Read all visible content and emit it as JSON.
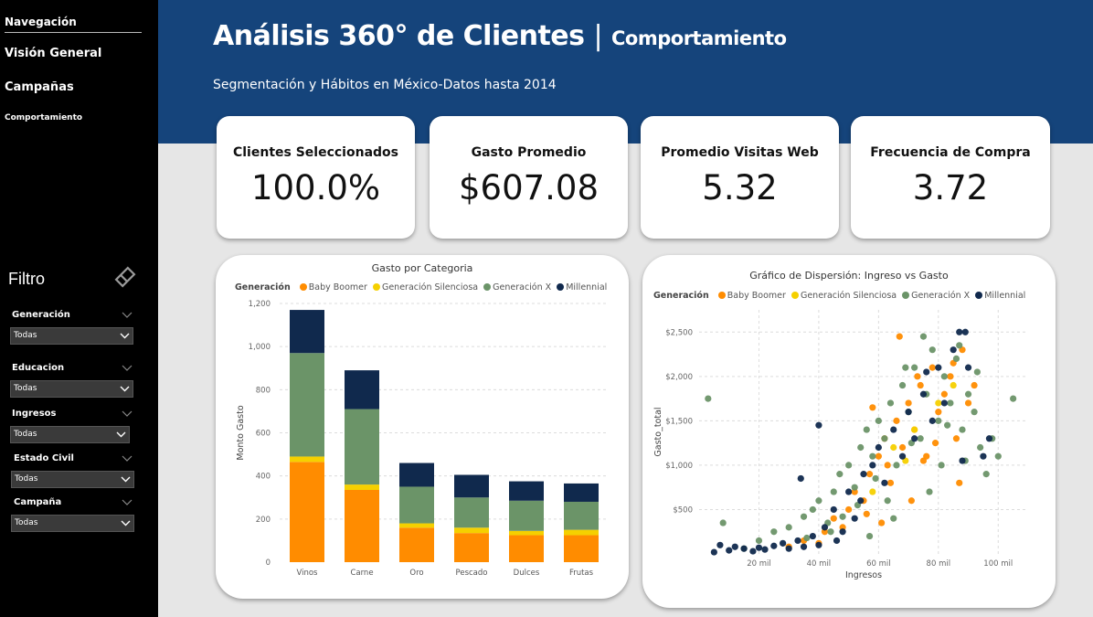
{
  "sidebar": {
    "nav_title": "Navegación",
    "items": [
      "Visión General",
      "Campañas",
      "Comportamiento"
    ],
    "filter_title": "Filtro",
    "filters": [
      {
        "label": "Generación",
        "value": "Todas"
      },
      {
        "label": "Educacion",
        "value": "Todas"
      },
      {
        "label": "Ingresos",
        "value": "Todas"
      },
      {
        "label": "Estado Civil",
        "value": "Todas"
      },
      {
        "label": "Campaña",
        "value": "Todas"
      }
    ]
  },
  "header": {
    "title": "Análisis 360° de Clientes",
    "separator": "|",
    "title_sub": "Comportamiento",
    "subtitle": "Segmentación y Hábitos en México-Datos hasta 2014"
  },
  "kpis": [
    {
      "label": "Clientes Seleccionados",
      "value": "100.0%"
    },
    {
      "label": "Gasto Promedio",
      "value": "$607.08"
    },
    {
      "label": "Promedio Visitas Web",
      "value": "5.32"
    },
    {
      "label": "Frecuencia de Compra",
      "value": "3.72"
    }
  ],
  "legend": {
    "title": "Generación",
    "items": [
      {
        "name": "Baby Boomer",
        "color": "#ff8c00"
      },
      {
        "name": "Generación Silenciosa",
        "color": "#f5d000"
      },
      {
        "name": "Generación X",
        "color": "#6b9468"
      },
      {
        "name": "Millennial",
        "color": "#10294d"
      }
    ]
  },
  "chart_data": [
    {
      "type": "bar",
      "stacked": true,
      "title": "Gasto por Categoria",
      "xlabel": "",
      "ylabel": "Monto Gasto",
      "ylim": [
        0,
        1200
      ],
      "yticks": [
        "0",
        "200",
        "400",
        "600",
        "800",
        "1,000",
        "1,200"
      ],
      "categories": [
        "Vinos",
        "Carne",
        "Oro",
        "Pescado",
        "Dulces",
        "Frutas"
      ],
      "series": [
        {
          "name": "Baby Boomer",
          "values": [
            465,
            335,
            160,
            135,
            125,
            125
          ]
        },
        {
          "name": "Generación Silenciosa",
          "values": [
            25,
            25,
            20,
            25,
            20,
            25
          ]
        },
        {
          "name": "Generación X",
          "values": [
            480,
            350,
            170,
            140,
            140,
            130
          ]
        },
        {
          "name": "Millennial",
          "values": [
            200,
            180,
            110,
            105,
            90,
            85
          ]
        }
      ],
      "grid": true,
      "legend": "top-left"
    },
    {
      "type": "scatter",
      "title": "Gráfico de Dispersión: Ingreso vs Gasto",
      "xlabel": "Ingresos",
      "ylabel": "Gasto_total",
      "xlim": [
        0,
        110000
      ],
      "ylim": [
        0,
        2750
      ],
      "xticks": [
        {
          "v": 20000,
          "label": "20 mil"
        },
        {
          "v": 40000,
          "label": "40 mil"
        },
        {
          "v": 60000,
          "label": "60 mil"
        },
        {
          "v": 80000,
          "label": "80 mil"
        },
        {
          "v": 100000,
          "label": "100 mil"
        }
      ],
      "yticks": [
        {
          "v": 500,
          "label": "$500"
        },
        {
          "v": 1000,
          "label": "$1,000"
        },
        {
          "v": 1500,
          "label": "$1,500"
        },
        {
          "v": 2000,
          "label": "$2,000"
        },
        {
          "v": 2500,
          "label": "$2,500"
        }
      ],
      "series": [
        {
          "name": "Baby Boomer",
          "points": [
            [
              30000,
              80
            ],
            [
              35000,
              150
            ],
            [
              42000,
              250
            ],
            [
              45000,
              400
            ],
            [
              50000,
              500
            ],
            [
              52000,
              700
            ],
            [
              55000,
              600
            ],
            [
              57000,
              900
            ],
            [
              60000,
              1100
            ],
            [
              62000,
              1300
            ],
            [
              64000,
              800
            ],
            [
              66000,
              1500
            ],
            [
              68000,
              1200
            ],
            [
              70000,
              1700
            ],
            [
              72000,
              1400
            ],
            [
              74000,
              1900
            ],
            [
              76000,
              1100
            ],
            [
              78000,
              2100
            ],
            [
              80000,
              1600
            ],
            [
              82000,
              1800
            ],
            [
              84000,
              2000
            ],
            [
              86000,
              1300
            ],
            [
              88000,
              2300
            ],
            [
              90000,
              1700
            ],
            [
              92000,
              1900
            ],
            [
              48000,
              300
            ],
            [
              56000,
              450
            ],
            [
              63000,
              1000
            ],
            [
              67000,
              2450
            ],
            [
              75000,
              1050
            ],
            [
              85000,
              2150
            ],
            [
              58000,
              1650
            ],
            [
              71000,
              600
            ],
            [
              79000,
              1250
            ],
            [
              87000,
              800
            ],
            [
              40000,
              120
            ],
            [
              61000,
              350
            ],
            [
              73000,
              2000
            ]
          ]
        },
        {
          "name": "Generación Silenciosa",
          "points": [
            [
              65000,
              1200
            ],
            [
              72000,
              1400
            ],
            [
              80000,
              1700
            ],
            [
              58000,
              700
            ],
            [
              85000,
              1900
            ],
            [
              69000,
              1050
            ]
          ]
        },
        {
          "name": "Generación X",
          "points": [
            [
              3000,
              1750
            ],
            [
              8000,
              350
            ],
            [
              15000,
              60
            ],
            [
              20000,
              150
            ],
            [
              25000,
              250
            ],
            [
              30000,
              300
            ],
            [
              35000,
              420
            ],
            [
              38000,
              500
            ],
            [
              40000,
              600
            ],
            [
              43000,
              350
            ],
            [
              45000,
              700
            ],
            [
              47000,
              900
            ],
            [
              50000,
              1000
            ],
            [
              52000,
              750
            ],
            [
              54000,
              1200
            ],
            [
              56000,
              1400
            ],
            [
              58000,
              1100
            ],
            [
              60000,
              1500
            ],
            [
              62000,
              1300
            ],
            [
              64000,
              1700
            ],
            [
              66000,
              1000
            ],
            [
              68000,
              1900
            ],
            [
              70000,
              1600
            ],
            [
              72000,
              2100
            ],
            [
              74000,
              1300
            ],
            [
              76000,
              1800
            ],
            [
              78000,
              2300
            ],
            [
              80000,
              1500
            ],
            [
              82000,
              2000
            ],
            [
              84000,
              1700
            ],
            [
              86000,
              2200
            ],
            [
              88000,
              1400
            ],
            [
              90000,
              1800
            ],
            [
              92000,
              1600
            ],
            [
              94000,
              1200
            ],
            [
              96000,
              900
            ],
            [
              98000,
              1300
            ],
            [
              100000,
              1100
            ],
            [
              105000,
              1750
            ],
            [
              44000,
              250
            ],
            [
              53000,
              550
            ],
            [
              59000,
              850
            ],
            [
              63000,
              600
            ],
            [
              69000,
              2100
            ],
            [
              75000,
              2450
            ],
            [
              81000,
              1000
            ],
            [
              87000,
              2350
            ],
            [
              93000,
              2050
            ],
            [
              57000,
              200
            ],
            [
              65000,
              400
            ],
            [
              77000,
              700
            ],
            [
              89000,
              1050
            ],
            [
              36000,
              180
            ],
            [
              48000,
              420
            ],
            [
              71000,
              1250
            ],
            [
              83000,
              1450
            ]
          ]
        },
        {
          "name": "Millennial",
          "points": [
            [
              5000,
              20
            ],
            [
              7000,
              100
            ],
            [
              10000,
              40
            ],
            [
              12000,
              80
            ],
            [
              15000,
              60
            ],
            [
              18000,
              30
            ],
            [
              20000,
              70
            ],
            [
              22000,
              50
            ],
            [
              25000,
              90
            ],
            [
              28000,
              120
            ],
            [
              30000,
              60
            ],
            [
              33000,
              150
            ],
            [
              35000,
              80
            ],
            [
              38000,
              200
            ],
            [
              40000,
              100
            ],
            [
              42000,
              300
            ],
            [
              45000,
              500
            ],
            [
              48000,
              250
            ],
            [
              50000,
              700
            ],
            [
              52000,
              400
            ],
            [
              55000,
              900
            ],
            [
              58000,
              1000
            ],
            [
              60000,
              1200
            ],
            [
              62000,
              800
            ],
            [
              65000,
              1400
            ],
            [
              68000,
              1100
            ],
            [
              70000,
              1600
            ],
            [
              72000,
              1300
            ],
            [
              75000,
              1800
            ],
            [
              78000,
              1500
            ],
            [
              80000,
              2100
            ],
            [
              82000,
              1700
            ],
            [
              85000,
              2300
            ],
            [
              87000,
              2500
            ],
            [
              89000,
              2500
            ],
            [
              90000,
              2100
            ],
            [
              95000,
              1100
            ],
            [
              97000,
              1300
            ],
            [
              34000,
              850
            ],
            [
              40000,
              1450
            ],
            [
              88000,
              1050
            ],
            [
              76000,
              2050
            ],
            [
              46000,
              150
            ],
            [
              54000,
              600
            ]
          ]
        }
      ],
      "grid": true,
      "legend": "top-left"
    }
  ]
}
